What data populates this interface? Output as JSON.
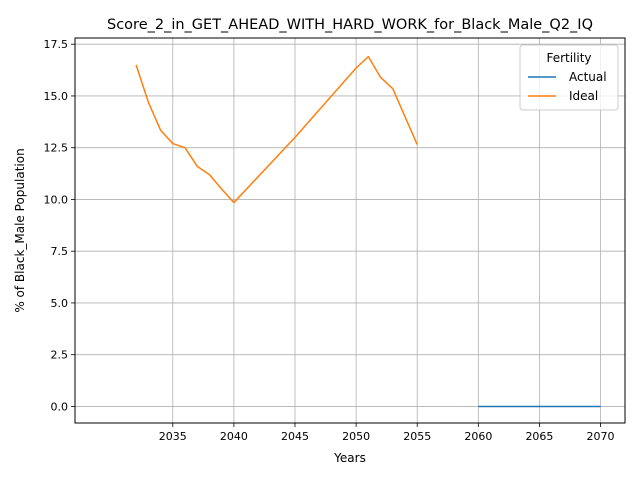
{
  "chart_data": {
    "type": "line",
    "title": "Score_2_in_GET_AHEAD_WITH_HARD_WORK_for_Black_Male_Q2_IQ",
    "xlabel": "Years",
    "ylabel": "% of Black_Male Population",
    "xlim": [
      2027,
      2072
    ],
    "ylim": [
      -0.8,
      17.8
    ],
    "xticks": [
      2035,
      2040,
      2045,
      2050,
      2055,
      2060,
      2065,
      2070
    ],
    "yticks": [
      0.0,
      2.5,
      5.0,
      7.5,
      10.0,
      12.5,
      15.0,
      17.5
    ],
    "xtick_labels": [
      "2035",
      "2040",
      "2045",
      "2050",
      "2055",
      "2060",
      "2065",
      "2070"
    ],
    "ytick_labels": [
      "0.0",
      "2.5",
      "5.0",
      "7.5",
      "10.0",
      "12.5",
      "15.0",
      "17.5"
    ],
    "grid": true,
    "legend": {
      "title": "Fertility",
      "placement": "top-right"
    },
    "series": [
      {
        "name": "Actual",
        "color": "#1f77b4",
        "x": [
          2060,
          2061,
          2062,
          2063,
          2064,
          2065,
          2066,
          2067,
          2068,
          2069,
          2070
        ],
        "y": [
          0,
          0,
          0,
          0,
          0,
          0,
          0,
          0,
          0,
          0,
          0
        ]
      },
      {
        "name": "Ideal",
        "color": "#ff7f0e",
        "x": [
          2032,
          2033,
          2034,
          2035,
          2036,
          2037,
          2038,
          2039,
          2040,
          2045,
          2050,
          2051,
          2052,
          2053,
          2054,
          2055
        ],
        "y": [
          16.5,
          14.7,
          13.35,
          12.7,
          12.5,
          11.6,
          11.2,
          10.5,
          9.85,
          13.0,
          16.35,
          16.9,
          15.9,
          15.35,
          14.0,
          12.65
        ]
      }
    ]
  }
}
